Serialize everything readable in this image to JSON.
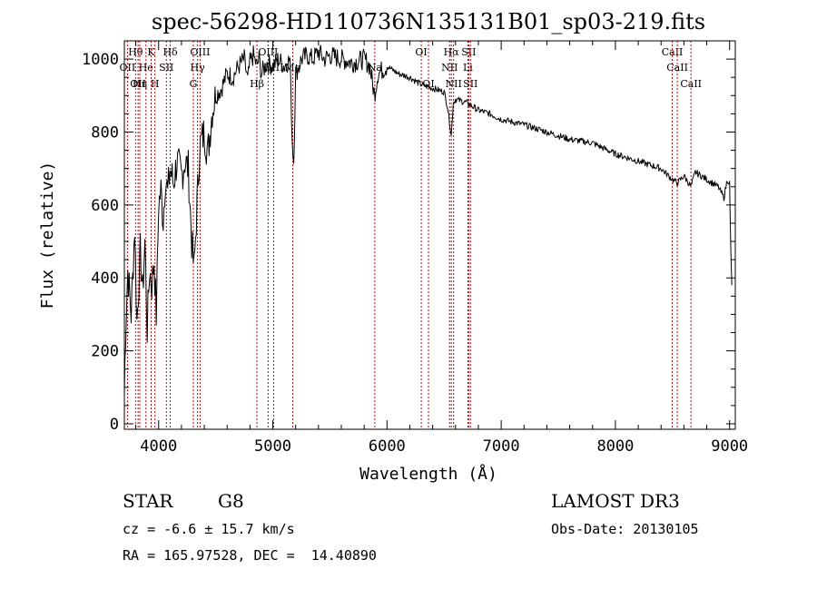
{
  "chart_data": {
    "type": "line",
    "title": "spec-56298-HD110736N135131B01_sp03-219.fits",
    "xlabel": "Wavelength (Å)",
    "ylabel": "Flux (relative)",
    "xlim": [
      3700,
      9050
    ],
    "ylim": [
      -15,
      1050
    ],
    "x_ticks": [
      4000,
      5000,
      6000,
      7000,
      8000,
      9000
    ],
    "y_ticks": [
      0,
      200,
      400,
      600,
      800,
      1000
    ],
    "series": [
      {
        "name": "flux",
        "x": [
          3700,
          3710,
          3730,
          3760,
          3790,
          3810,
          3840,
          3860,
          3880,
          3900,
          3920,
          3940,
          3960,
          3980,
          4000,
          4020,
          4040,
          4060,
          4080,
          4100,
          4130,
          4160,
          4200,
          4230,
          4260,
          4290,
          4310,
          4330,
          4360,
          4400,
          4430,
          4470,
          4500,
          4550,
          4600,
          4650,
          4700,
          4750,
          4780,
          4800,
          4830,
          4861,
          4880,
          4900,
          4950,
          5000,
          5050,
          5100,
          5150,
          5170,
          5183,
          5200,
          5250,
          5300,
          5350,
          5400,
          5450,
          5500,
          5600,
          5700,
          5800,
          5850,
          5890,
          5920,
          6000,
          6100,
          6200,
          6300,
          6400,
          6500,
          6530,
          6563,
          6580,
          6600,
          6700,
          6800,
          6900,
          7000,
          7200,
          7400,
          7600,
          7800,
          8000,
          8200,
          8400,
          8498,
          8542,
          8600,
          8662,
          8700,
          8800,
          8900,
          8950,
          8980,
          9000,
          9010,
          9020
        ],
        "y": [
          80,
          250,
          420,
          300,
          540,
          280,
          470,
          360,
          500,
          260,
          420,
          380,
          450,
          300,
          600,
          640,
          560,
          680,
          630,
          700,
          660,
          720,
          680,
          720,
          700,
          500,
          420,
          560,
          760,
          800,
          740,
          860,
          900,
          920,
          960,
          950,
          980,
          1000,
          940,
          990,
          1010,
          980,
          1000,
          960,
          990,
          980,
          1000,
          980,
          1000,
          780,
          720,
          960,
          1000,
          1010,
          1000,
          1020,
          1000,
          1010,
          1000,
          990,
          1000,
          980,
          900,
          960,
          980,
          960,
          950,
          930,
          920,
          910,
          870,
          790,
          880,
          890,
          880,
          860,
          850,
          835,
          820,
          800,
          780,
          770,
          740,
          720,
          700,
          670,
          660,
          680,
          650,
          690,
          670,
          650,
          620,
          670,
          660,
          480,
          380
        ]
      }
    ],
    "line_markers": [
      {
        "label": "Hθ",
        "x": 3798,
        "row": 1
      },
      {
        "label": "OII",
        "x": 3727,
        "row": 2
      },
      {
        "label": "OII",
        "x": 3820,
        "row": 3
      },
      {
        "label": "He",
        "x": 3889,
        "row": 2
      },
      {
        "label": "Hη",
        "x": 3835,
        "row": 3
      },
      {
        "label": "K",
        "x": 3934,
        "row": 1
      },
      {
        "label": "H",
        "x": 3968,
        "row": 3
      },
      {
        "label": "SII",
        "x": 4068,
        "row": 2
      },
      {
        "label": "Hδ",
        "x": 4102,
        "row": 1
      },
      {
        "label": "OIII",
        "x": 4363,
        "row": 1
      },
      {
        "label": "Hγ",
        "x": 4341,
        "row": 2
      },
      {
        "label": "G",
        "x": 4304,
        "row": 3
      },
      {
        "label": "OIII",
        "x": 4959,
        "row": 1
      },
      {
        "label": "OIII",
        "x": 5007,
        "row": 2
      },
      {
        "label": "Hβ",
        "x": 4861,
        "row": 3
      },
      {
        "label": "Mg",
        "x": 5175,
        "row": 2
      },
      {
        "label": "Na",
        "x": 5893,
        "row": 2
      },
      {
        "label": "OI",
        "x": 6300,
        "row": 1
      },
      {
        "label": "OI",
        "x": 6363,
        "row": 3
      },
      {
        "label": "Hα",
        "x": 6563,
        "row": 1
      },
      {
        "label": "NII",
        "x": 6548,
        "row": 2
      },
      {
        "label": "NII",
        "x": 6583,
        "row": 3
      },
      {
        "label": "SII",
        "x": 6716,
        "row": 1
      },
      {
        "label": "Li",
        "x": 6708,
        "row": 2
      },
      {
        "label": "SII",
        "x": 6731,
        "row": 3
      },
      {
        "label": "CaII",
        "x": 8498,
        "row": 1
      },
      {
        "label": "CaII",
        "x": 8542,
        "row": 2
      },
      {
        "label": "CaII",
        "x": 8662,
        "row": 3
      }
    ],
    "colors": {
      "spectrum": "#000000",
      "marker_line": "#cc0000"
    }
  },
  "info": {
    "class_label": "STAR",
    "subclass": "G8",
    "survey": "LAMOST DR3",
    "cz": "cz = -6.6 ± 15.7 km/s",
    "obs_date": "Obs-Date: 20130105",
    "radec": "RA = 165.97528, DEC =  14.40890"
  }
}
